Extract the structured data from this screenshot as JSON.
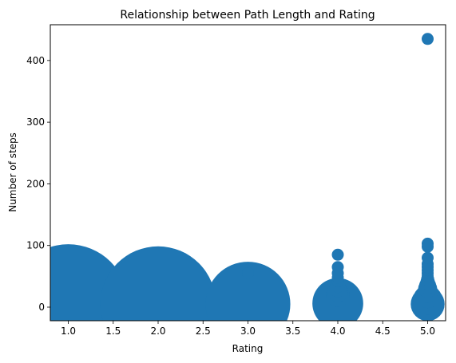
{
  "chart_data": {
    "type": "scatter",
    "title": "Relationship between Path Length and Rating",
    "xlabel": "Rating",
    "ylabel": "Number of steps",
    "xlim": [
      0.8,
      5.2
    ],
    "ylim": [
      -22,
      458
    ],
    "xticks": [
      1.0,
      1.5,
      2.0,
      2.5,
      3.0,
      3.5,
      4.0,
      4.5,
      5.0
    ],
    "xtick_labels": [
      "1.0",
      "1.5",
      "2.0",
      "2.5",
      "3.0",
      "3.5",
      "4.0",
      "4.5",
      "5.0"
    ],
    "yticks": [
      0,
      100,
      200,
      300,
      400
    ],
    "ytick_labels": [
      "0",
      "100",
      "200",
      "300",
      "400"
    ],
    "grid": false,
    "legend": "none",
    "marker_color": "#1f77b4",
    "note_size": "marker area encodes count of points at each (rating, steps) pair",
    "points": [
      {
        "x": 1.0,
        "y": 5,
        "size": 1.0
      },
      {
        "x": 2.0,
        "y": 5,
        "size": 0.93
      },
      {
        "x": 3.0,
        "y": 5,
        "size": 0.5
      },
      {
        "x": 3.0,
        "y": 55,
        "size": 0.01
      },
      {
        "x": 4.0,
        "y": 6,
        "size": 0.18
      },
      {
        "x": 4.0,
        "y": 20,
        "size": 0.04
      },
      {
        "x": 4.0,
        "y": 25,
        "size": 0.03
      },
      {
        "x": 4.0,
        "y": 30,
        "size": 0.02
      },
      {
        "x": 4.0,
        "y": 35,
        "size": 0.015
      },
      {
        "x": 4.0,
        "y": 42,
        "size": 0.01
      },
      {
        "x": 4.0,
        "y": 48,
        "size": 0.01
      },
      {
        "x": 4.0,
        "y": 55,
        "size": 0.01
      },
      {
        "x": 4.0,
        "y": 65,
        "size": 0.01
      },
      {
        "x": 4.0,
        "y": 85,
        "size": 0.01
      },
      {
        "x": 5.0,
        "y": 5,
        "size": 0.08
      },
      {
        "x": 5.0,
        "y": 12,
        "size": 0.06
      },
      {
        "x": 5.0,
        "y": 18,
        "size": 0.04
      },
      {
        "x": 5.0,
        "y": 24,
        "size": 0.03
      },
      {
        "x": 5.0,
        "y": 30,
        "size": 0.025
      },
      {
        "x": 5.0,
        "y": 35,
        "size": 0.02
      },
      {
        "x": 5.0,
        "y": 40,
        "size": 0.015
      },
      {
        "x": 5.0,
        "y": 45,
        "size": 0.012
      },
      {
        "x": 5.0,
        "y": 50,
        "size": 0.01
      },
      {
        "x": 5.0,
        "y": 55,
        "size": 0.01
      },
      {
        "x": 5.0,
        "y": 60,
        "size": 0.01
      },
      {
        "x": 5.0,
        "y": 65,
        "size": 0.01
      },
      {
        "x": 5.0,
        "y": 70,
        "size": 0.01
      },
      {
        "x": 5.0,
        "y": 80,
        "size": 0.01
      },
      {
        "x": 5.0,
        "y": 98,
        "size": 0.01
      },
      {
        "x": 5.0,
        "y": 103,
        "size": 0.01
      },
      {
        "x": 5.0,
        "y": 435,
        "size": 0.01
      }
    ]
  }
}
